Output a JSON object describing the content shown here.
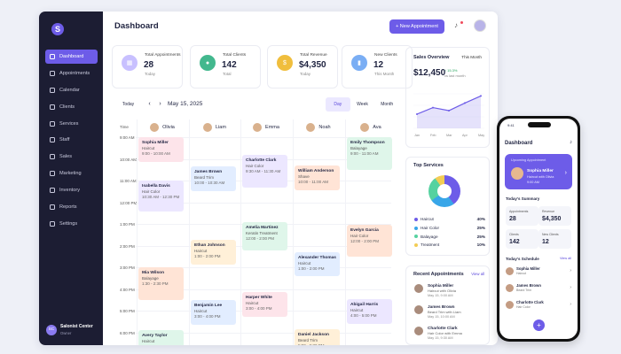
{
  "app": {
    "logo": "S",
    "user_initials": "SC",
    "user_name": "Salonist Center",
    "user_role": "Owner"
  },
  "sidebar": {
    "items": [
      {
        "label": "Dashboard",
        "active": true
      },
      {
        "label": "Appointments"
      },
      {
        "label": "Calendar"
      },
      {
        "label": "Clients"
      },
      {
        "label": "Services"
      },
      {
        "label": "Staff"
      },
      {
        "label": "Sales"
      },
      {
        "label": "Marketing"
      },
      {
        "label": "Inventory"
      },
      {
        "label": "Reports"
      },
      {
        "label": "Settings"
      }
    ]
  },
  "header": {
    "title": "Dashboard",
    "new_button": "+ New Appointment"
  },
  "stats": [
    {
      "label": "Total Appointments",
      "value": "28",
      "sub": "Today",
      "color": "#c8c0ff",
      "icon": "▦"
    },
    {
      "label": "Total Clients",
      "value": "142",
      "sub": "Total",
      "color": "#43b88e",
      "icon": "●"
    },
    {
      "label": "Total Revenue",
      "value": "$4,350",
      "sub": "Today",
      "color": "#f0be3d",
      "icon": "$"
    },
    {
      "label": "New Clients",
      "value": "12",
      "sub": "This Month",
      "color": "#7aaef4",
      "icon": "▮"
    }
  ],
  "calendar": {
    "today": "Today",
    "date": "May 15, 2025",
    "views": [
      "Day",
      "Week",
      "Month"
    ],
    "time_header": "Time",
    "staff": [
      "Olivia",
      "Liam",
      "Emma",
      "Noah",
      "Ava"
    ],
    "times": [
      "9:00 AM",
      "10:00 AM",
      "11:00 AM",
      "12:00 PM",
      "1:00 PM",
      "2:00 PM",
      "3:00 PM",
      "4:00 PM",
      "5:00 PM",
      "6:00 PM"
    ],
    "events": [
      {
        "name": "Sophia Miller",
        "service": "Haircut",
        "time": "9:00 - 10:00 AM",
        "col": 0,
        "row": 0,
        "h": 28,
        "color": "#fde4ea"
      },
      {
        "name": "Isabella Davis",
        "service": "Hair Color",
        "time": "10:30 AM - 12:30 PM",
        "col": 0,
        "row": 2,
        "h": 35,
        "color": "#ece7ff"
      },
      {
        "name": "Mia Wilson",
        "service": "Balayage",
        "time": "1:30 - 2:30 PM",
        "col": 0,
        "row": 6,
        "h": 37,
        "color": "#ffe4d6"
      },
      {
        "name": "Avery Taylor",
        "service": "Haircut",
        "time": "5:00 - 6:00 PM",
        "col": 0,
        "row": 8.9,
        "h": 26,
        "color": "#dff6ea"
      },
      {
        "name": "James Brown",
        "service": "Beard Trim",
        "time": "10:00 - 10:30 AM",
        "col": 1,
        "row": 1.35,
        "h": 28,
        "color": "#e2edff"
      },
      {
        "name": "Ethan Johnson",
        "service": "Haircut",
        "time": "1:00 - 2:00 PM",
        "col": 1,
        "row": 4.75,
        "h": 28,
        "color": "#fff0d8"
      },
      {
        "name": "Benjamin Lee",
        "service": "Haircut",
        "time": "3:00 - 4:00 PM",
        "col": 1,
        "row": 7.5,
        "h": 28,
        "color": "#e2edff"
      },
      {
        "name": "Charlotte Clark",
        "service": "Hair Color",
        "time": "9:30 AM - 11:30 AM",
        "col": 2,
        "row": 0.8,
        "h": 37,
        "color": "#ece7ff"
      },
      {
        "name": "Amelia Martinez",
        "service": "Keratin Treatment",
        "time": "12:00 - 2:00 PM",
        "col": 2,
        "row": 3.9,
        "h": 32,
        "color": "#dff6ea"
      },
      {
        "name": "Harper White",
        "service": "Haircut",
        "time": "3:00 - 4:00 PM",
        "col": 2,
        "row": 7.15,
        "h": 28,
        "color": "#fde4ea"
      },
      {
        "name": "William Anderson",
        "service": "Shave",
        "time": "10:00 - 11:00 AM",
        "col": 3,
        "row": 1.3,
        "h": 28,
        "color": "#ffe4d6"
      },
      {
        "name": "Alexander Thomas",
        "service": "Haircut",
        "time": "1:00 - 2:00 PM",
        "col": 3,
        "row": 5.3,
        "h": 27,
        "color": "#e2edff"
      },
      {
        "name": "Daniel Jackson",
        "service": "Beard Trim",
        "time": "5:00 - 5:30 PM",
        "col": 3,
        "row": 8.85,
        "h": 26,
        "color": "#fff0d8"
      },
      {
        "name": "Emily Thompson",
        "service": "Balayage",
        "time": "9:00 - 11:00 AM",
        "col": 4,
        "row": 0,
        "h": 37,
        "color": "#dff6ea"
      },
      {
        "name": "Evelyn Garcia",
        "service": "Hair Color",
        "time": "12:00 - 2:00 PM",
        "col": 4,
        "row": 4.05,
        "h": 36,
        "color": "#ffe4d6"
      },
      {
        "name": "Abigail Harris",
        "service": "Haircut",
        "time": "4:00 - 5:00 PM",
        "col": 4,
        "row": 7.45,
        "h": 28,
        "color": "#ece7ff"
      }
    ]
  },
  "sales": {
    "title": "Sales Overview",
    "period": "This Month",
    "value": "$12,450",
    "change": "↑ 15.3%",
    "compare": "vs last month",
    "months": [
      "Jan",
      "Feb",
      "Mar",
      "Apr",
      "May"
    ]
  },
  "chart_data": {
    "type": "area",
    "x": [
      "Jan",
      "Feb",
      "Mar",
      "Apr",
      "May"
    ],
    "values": [
      28,
      41,
      35,
      50,
      64
    ],
    "ylim": [
      0,
      70
    ],
    "title": "Sales Overview",
    "color": "#6d5ce8"
  },
  "top_services": {
    "title": "Top Services",
    "items": [
      {
        "label": "Haircut",
        "value": "40%",
        "color": "#6d5ce8"
      },
      {
        "label": "Hair Color",
        "value": "25%",
        "color": "#38a6e8"
      },
      {
        "label": "Balayage",
        "value": "25%",
        "color": "#55d2a0"
      },
      {
        "label": "Treatment",
        "value": "10%",
        "color": "#f2cc55"
      }
    ]
  },
  "recent": {
    "title": "Recent Appointments",
    "view_all": "View all",
    "items": [
      {
        "name": "Sophia Miller",
        "service": "Haircut with Olivia",
        "time": "May 15, 9:00 AM"
      },
      {
        "name": "James Brown",
        "service": "Beard Trim with Liam",
        "time": "May 15, 10:00 AM"
      },
      {
        "name": "Charlotte Clark",
        "service": "Hair Color with Emma",
        "time": "May 15, 9:30 AM"
      }
    ]
  },
  "phone": {
    "time": "9:41",
    "title": "Dashboard",
    "upcoming_label": "Upcoming Appointment",
    "upcoming_name": "Sophia Miller",
    "upcoming_service": "Haircut with Olivia",
    "upcoming_time": "9:00 AM",
    "summary_title": "Today's Summary",
    "summary": [
      {
        "label": "Appointments",
        "value": "28"
      },
      {
        "label": "Revenue",
        "value": "$4,350"
      },
      {
        "label": "Clients",
        "value": "142"
      },
      {
        "label": "New Clients",
        "value": "12"
      }
    ],
    "schedule_title": "Today's Schedule",
    "schedule_view": "View all",
    "schedule": [
      {
        "name": "Sophia Miller",
        "service": "Haircut"
      },
      {
        "name": "James Brown",
        "service": "Beard Trim"
      },
      {
        "name": "Charlotte Clark",
        "service": "Hair Color"
      }
    ],
    "fab": "+"
  }
}
